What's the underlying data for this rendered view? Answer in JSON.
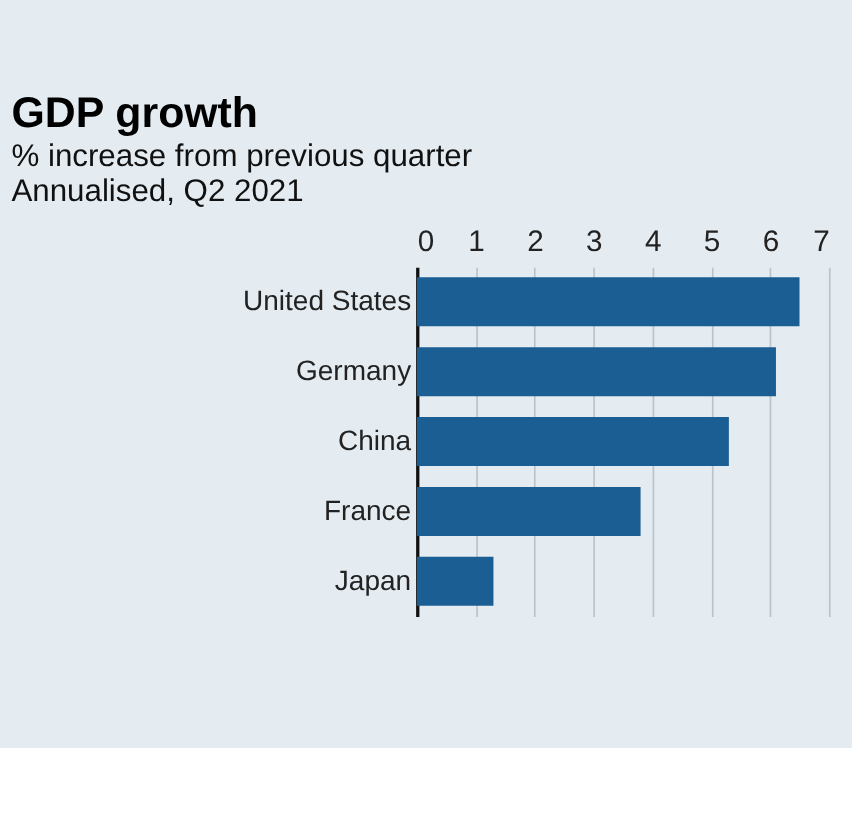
{
  "chart_data": {
    "type": "bar",
    "orientation": "horizontal",
    "title": "GDP growth",
    "subtitle": "% increase from previous quarter",
    "annotations": [
      "Annualised, Q2 2021"
    ],
    "categories": [
      "United States",
      "Germany",
      "China",
      "France",
      "Japan"
    ],
    "values": [
      6.5,
      6.1,
      5.3,
      3.8,
      1.3
    ],
    "color": "#1b5e94",
    "xlim": [
      0,
      7
    ],
    "xticks": [
      0,
      1,
      2,
      3,
      4,
      5,
      6,
      7
    ],
    "grid": "x"
  }
}
